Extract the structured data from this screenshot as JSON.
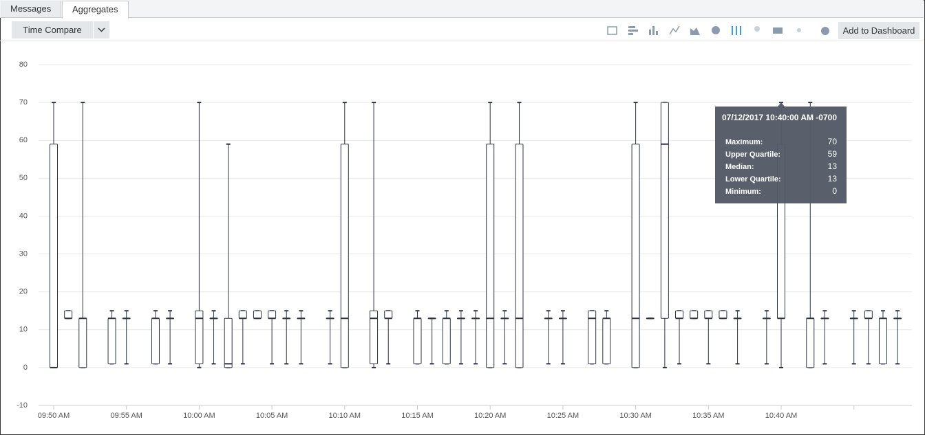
{
  "tabs": [
    "Messages",
    "Aggregates"
  ],
  "toolbar": {
    "time_compare": "Time Compare",
    "add_to_dashboard": "Add to Dashboard"
  },
  "chart_data": {
    "type": "box",
    "categories": [
      "09:50 AM",
      null,
      null,
      null,
      null,
      "09:55 AM",
      null,
      null,
      null,
      null,
      "10:00 AM",
      null,
      null,
      null,
      null,
      "10:05 AM",
      null,
      null,
      null,
      null,
      "10:10 AM",
      null,
      null,
      null,
      null,
      "10:15 AM",
      null,
      null,
      null,
      null,
      "10:20 AM",
      null,
      null,
      null,
      null,
      "10:25 AM",
      null,
      null,
      null,
      null,
      "10:30 AM",
      null,
      null,
      null,
      null,
      "10:35 AM",
      null,
      null,
      null,
      null,
      "10:40 AM",
      null,
      null,
      null,
      null,
      null,
      null,
      null,
      null,
      null
    ],
    "boxes": [
      {
        "min": 0,
        "q1": 0,
        "median": 0,
        "q3": 59,
        "max": 70
      },
      {
        "min": 13,
        "q1": 13,
        "median": 13,
        "q3": 15,
        "max": 15
      },
      {
        "min": 0,
        "q1": 0,
        "median": 13,
        "q3": 13,
        "max": 70
      },
      null,
      {
        "min": 1,
        "q1": 1,
        "median": 13,
        "q3": 13,
        "max": 15
      },
      {
        "min": 1,
        "q1": 13,
        "median": 13,
        "q3": 13,
        "max": 15
      },
      null,
      {
        "min": 1,
        "q1": 1,
        "median": 13,
        "q3": 13,
        "max": 15
      },
      {
        "min": 1,
        "q1": 13,
        "median": 13,
        "q3": 13,
        "max": 15
      },
      null,
      {
        "min": 0,
        "q1": 1,
        "median": 13,
        "q3": 15,
        "max": 70
      },
      {
        "min": 1,
        "q1": 13,
        "median": 13,
        "q3": 13,
        "max": 15
      },
      {
        "min": 0,
        "q1": 0,
        "median": 1,
        "q3": 13,
        "max": 59
      },
      {
        "min": 1,
        "q1": 13,
        "median": 13,
        "q3": 15,
        "max": 15
      },
      {
        "min": 13,
        "q1": 13,
        "median": 13,
        "q3": 15,
        "max": 15
      },
      {
        "min": 1,
        "q1": 13,
        "median": 13,
        "q3": 15,
        "max": 15
      },
      {
        "min": 1,
        "q1": 13,
        "median": 13,
        "q3": 13,
        "max": 15
      },
      {
        "min": 1,
        "q1": 13,
        "median": 13,
        "q3": 13,
        "max": 15
      },
      null,
      {
        "min": 1,
        "q1": 13,
        "median": 13,
        "q3": 13,
        "max": 15
      },
      {
        "min": 0,
        "q1": 0,
        "median": 13,
        "q3": 59,
        "max": 70
      },
      null,
      {
        "min": 0,
        "q1": 1,
        "median": 13,
        "q3": 15,
        "max": 70
      },
      {
        "min": 1,
        "q1": 13,
        "median": 13,
        "q3": 15,
        "max": 15
      },
      null,
      {
        "min": 1,
        "q1": 1,
        "median": 13,
        "q3": 13,
        "max": 15
      },
      {
        "min": 1,
        "q1": 13,
        "median": 13,
        "q3": 13,
        "max": 13
      },
      {
        "min": 1,
        "q1": 1,
        "median": 13,
        "q3": 13,
        "max": 15
      },
      {
        "min": 1,
        "q1": 13,
        "median": 13,
        "q3": 13,
        "max": 15
      },
      {
        "min": 1,
        "q1": 13,
        "median": 13,
        "q3": 13,
        "max": 15
      },
      {
        "min": 0,
        "q1": 0,
        "median": 13,
        "q3": 59,
        "max": 70
      },
      {
        "min": 1,
        "q1": 13,
        "median": 13,
        "q3": 13,
        "max": 15
      },
      {
        "min": 0,
        "q1": 0,
        "median": 13,
        "q3": 59,
        "max": 70
      },
      null,
      {
        "min": 1,
        "q1": 13,
        "median": 13,
        "q3": 13,
        "max": 15
      },
      {
        "min": 1,
        "q1": 13,
        "median": 13,
        "q3": 13,
        "max": 15
      },
      null,
      {
        "min": 1,
        "q1": 1,
        "median": 13,
        "q3": 15,
        "max": 15
      },
      {
        "min": 1,
        "q1": 1,
        "median": 13,
        "q3": 13,
        "max": 15
      },
      null,
      {
        "min": 0,
        "q1": 0,
        "median": 13,
        "q3": 59,
        "max": 70
      },
      {
        "min": 13,
        "q1": 13,
        "median": 13,
        "q3": 13,
        "max": 13
      },
      {
        "min": 0,
        "q1": 13,
        "median": 59,
        "q3": 70,
        "max": 70
      },
      {
        "min": 1,
        "q1": 13,
        "median": 13,
        "q3": 15,
        "max": 15
      },
      {
        "min": 13,
        "q1": 13,
        "median": 13,
        "q3": 15,
        "max": 15
      },
      {
        "min": 1,
        "q1": 13,
        "median": 13,
        "q3": 15,
        "max": 15
      },
      {
        "min": 13,
        "q1": 13,
        "median": 13,
        "q3": 15,
        "max": 15
      },
      {
        "min": 1,
        "q1": 13,
        "median": 13,
        "q3": 13,
        "max": 15
      },
      null,
      {
        "min": 1,
        "q1": 13,
        "median": 13,
        "q3": 13,
        "max": 15
      },
      {
        "min": 0,
        "q1": 13,
        "median": 13,
        "q3": 59,
        "max": 70
      },
      null,
      {
        "min": 0,
        "q1": 0,
        "median": 13,
        "q3": 13,
        "max": 70
      },
      {
        "min": 1,
        "q1": 13,
        "median": 13,
        "q3": 13,
        "max": 15
      },
      null,
      {
        "min": 1,
        "q1": 13,
        "median": 13,
        "q3": 13,
        "max": 15
      },
      {
        "min": 1,
        "q1": 13,
        "median": 13,
        "q3": 15,
        "max": 15
      },
      {
        "min": 1,
        "q1": 1,
        "median": 13,
        "q3": 13,
        "max": 15
      },
      {
        "min": 1,
        "q1": 13,
        "median": 13,
        "q3": 13,
        "max": 15
      },
      null
    ],
    "color": "#2c3345",
    "ylim": [
      -10,
      80
    ],
    "yticks": [
      -10,
      0,
      10,
      20,
      30,
      40,
      50,
      60,
      70,
      80
    ],
    "grid": true
  },
  "tooltip": {
    "title": "07/12/2017 10:40:00 AM -0700",
    "rows": [
      {
        "label": "Maximum:",
        "value": 70
      },
      {
        "label": "Upper Quartile:",
        "value": 59
      },
      {
        "label": "Median:",
        "value": 13
      },
      {
        "label": "Lower Quartile:",
        "value": 13
      },
      {
        "label": "Minimum:",
        "value": 0
      }
    ]
  }
}
